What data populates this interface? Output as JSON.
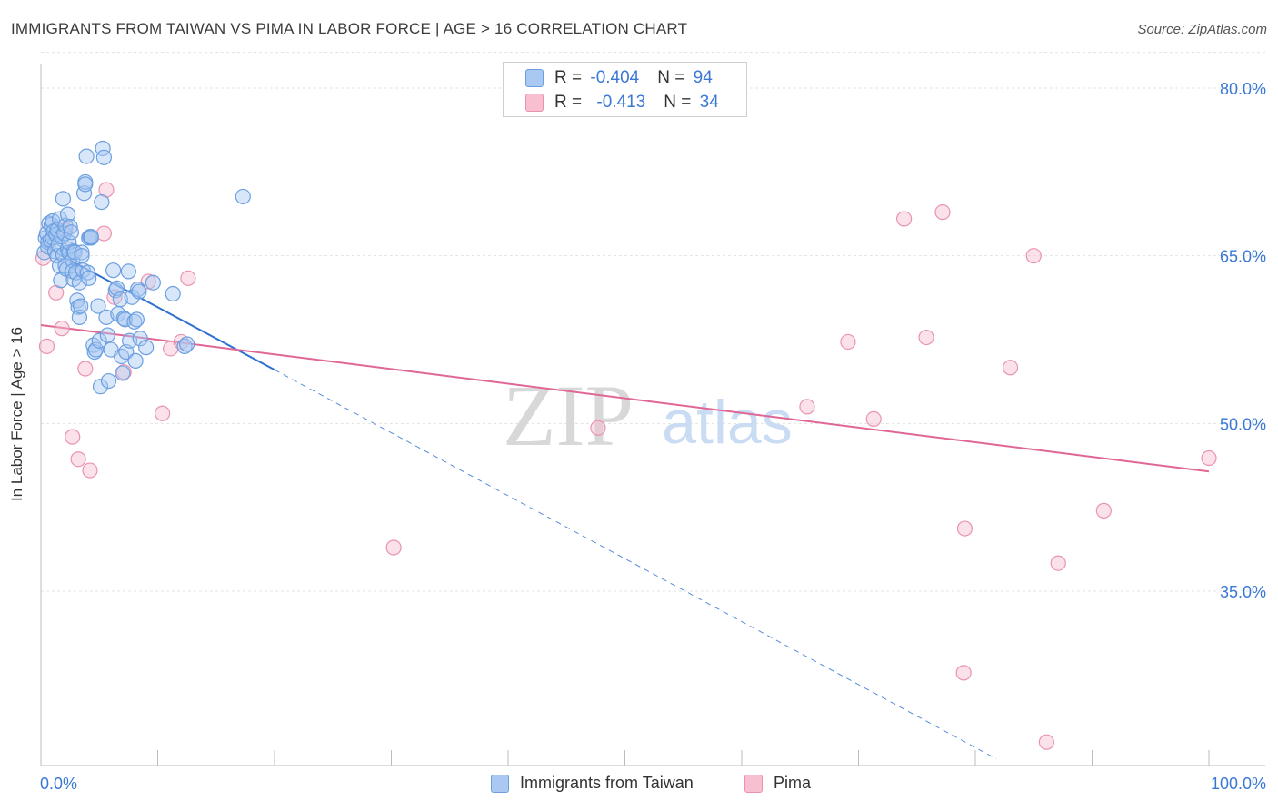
{
  "title": "IMMIGRANTS FROM TAIWAN VS PIMA IN LABOR FORCE | AGE > 16 CORRELATION CHART",
  "source": "Source: ZipAtlas.com",
  "watermark": {
    "zip": "ZIP",
    "atlas": "atlas"
  },
  "colors": {
    "blue_fill": "#a9c8f2",
    "blue_stroke": "#6b9fe0",
    "blue_line": "#2f6fd0",
    "pink_fill": "#f7bfd0",
    "pink_stroke": "#ea93b0",
    "pink_line": "#e06795",
    "grid": "#e3e3e3",
    "axis_label": "#3a78d4"
  },
  "legend": {
    "rows": [
      {
        "r_label": "R = ",
        "r_value": "-0.404",
        "n_label": "N = ",
        "n_value": "94"
      },
      {
        "r_label": "R = ",
        "r_value": "-0.413",
        "n_label": "N = ",
        "n_value": "34"
      }
    ]
  },
  "chart_data": {
    "type": "scatter",
    "xlabel": "",
    "ylabel": "In Labor Force | Age > 16",
    "xlim": [
      0,
      100
    ],
    "ylim": [
      20,
      83
    ],
    "x_tick_labels": [
      {
        "value": 0,
        "label": "0.0%"
      },
      {
        "value": 100,
        "label": "100.0%"
      }
    ],
    "y_tick_labels": [
      {
        "value": 35,
        "label": "35.0%"
      },
      {
        "value": 50,
        "label": "50.0%"
      },
      {
        "value": 65,
        "label": "65.0%"
      },
      {
        "value": 80,
        "label": "80.0%"
      }
    ],
    "gridlines_y": [
      35,
      50,
      65,
      80
    ],
    "legend_position": "top-center",
    "series": [
      {
        "name": "Immigrants from Taiwan",
        "color": "blue",
        "points": [
          [
            0.3,
            65.3
          ],
          [
            0.4,
            66.6
          ],
          [
            0.5,
            67.0
          ],
          [
            0.6,
            66.2
          ],
          [
            0.6,
            65.8
          ],
          [
            0.7,
            67.9
          ],
          [
            0.8,
            66.4
          ],
          [
            0.9,
            67.8
          ],
          [
            1.0,
            68.1
          ],
          [
            1.0,
            66.6
          ],
          [
            1.1,
            67.2
          ],
          [
            1.2,
            65.4
          ],
          [
            1.3,
            66.9
          ],
          [
            1.4,
            67.3
          ],
          [
            1.4,
            65.0
          ],
          [
            1.5,
            66.0
          ],
          [
            1.6,
            68.3
          ],
          [
            1.6,
            64.1
          ],
          [
            1.7,
            62.8
          ],
          [
            1.8,
            66.7
          ],
          [
            1.9,
            65.1
          ],
          [
            1.9,
            70.1
          ],
          [
            2.0,
            67.0
          ],
          [
            2.1,
            67.7
          ],
          [
            2.1,
            64.1
          ],
          [
            2.2,
            63.8
          ],
          [
            2.3,
            68.7
          ],
          [
            2.3,
            65.6
          ],
          [
            2.4,
            65.3
          ],
          [
            2.4,
            66.2
          ],
          [
            2.5,
            67.6
          ],
          [
            2.6,
            67.1
          ],
          [
            2.7,
            64.6
          ],
          [
            2.7,
            63.6
          ],
          [
            2.8,
            62.9
          ],
          [
            2.8,
            65.4
          ],
          [
            2.9,
            65.3
          ],
          [
            3.0,
            63.5
          ],
          [
            3.1,
            61.0
          ],
          [
            3.2,
            60.4
          ],
          [
            3.3,
            62.6
          ],
          [
            3.3,
            59.5
          ],
          [
            3.4,
            60.5
          ],
          [
            3.5,
            65.3
          ],
          [
            3.5,
            65.0
          ],
          [
            3.6,
            63.7
          ],
          [
            3.7,
            70.6
          ],
          [
            3.8,
            71.6
          ],
          [
            3.8,
            71.4
          ],
          [
            3.9,
            73.9
          ],
          [
            4.0,
            63.5
          ],
          [
            4.1,
            63.0
          ],
          [
            4.1,
            66.6
          ],
          [
            4.2,
            66.7
          ],
          [
            4.3,
            66.6
          ],
          [
            4.3,
            66.7
          ],
          [
            4.5,
            57.0
          ],
          [
            4.6,
            56.4
          ],
          [
            4.7,
            56.6
          ],
          [
            4.9,
            60.5
          ],
          [
            5.0,
            57.4
          ],
          [
            5.1,
            53.3
          ],
          [
            5.2,
            69.8
          ],
          [
            5.3,
            74.6
          ],
          [
            5.4,
            73.8
          ],
          [
            5.6,
            59.5
          ],
          [
            5.7,
            57.9
          ],
          [
            5.8,
            53.8
          ],
          [
            6.0,
            56.6
          ],
          [
            6.2,
            63.7
          ],
          [
            6.4,
            61.9
          ],
          [
            6.5,
            62.1
          ],
          [
            6.6,
            59.8
          ],
          [
            6.8,
            61.1
          ],
          [
            6.9,
            56.0
          ],
          [
            7.0,
            54.5
          ],
          [
            7.1,
            59.4
          ],
          [
            7.2,
            59.3
          ],
          [
            7.3,
            56.4
          ],
          [
            7.5,
            63.6
          ],
          [
            7.6,
            57.4
          ],
          [
            7.8,
            61.3
          ],
          [
            8.0,
            59.1
          ],
          [
            8.1,
            55.6
          ],
          [
            8.2,
            59.3
          ],
          [
            8.3,
            62.0
          ],
          [
            8.4,
            61.8
          ],
          [
            8.5,
            57.6
          ],
          [
            9.0,
            56.8
          ],
          [
            9.6,
            62.6
          ],
          [
            11.3,
            61.6
          ],
          [
            12.3,
            56.9
          ],
          [
            12.5,
            57.1
          ],
          [
            17.3,
            70.3
          ]
        ],
        "trend": {
          "x": [
            0,
            20
          ],
          "y": [
            66.0,
            54.8
          ]
        },
        "trend_extension": {
          "x": [
            20,
            81.8
          ],
          "y": [
            54.8,
            20
          ]
        }
      },
      {
        "name": "Pima",
        "color": "pink",
        "points": [
          [
            0.2,
            64.8
          ],
          [
            0.5,
            56.9
          ],
          [
            1.3,
            61.7
          ],
          [
            1.8,
            58.5
          ],
          [
            2.1,
            67.3
          ],
          [
            2.7,
            48.8
          ],
          [
            3.2,
            46.8
          ],
          [
            3.8,
            54.9
          ],
          [
            4.2,
            45.8
          ],
          [
            5.4,
            67.0
          ],
          [
            5.6,
            70.9
          ],
          [
            6.3,
            61.3
          ],
          [
            7.1,
            54.6
          ],
          [
            9.2,
            62.7
          ],
          [
            10.4,
            50.9
          ],
          [
            11.1,
            56.7
          ],
          [
            12.0,
            57.3
          ],
          [
            12.6,
            63.0
          ],
          [
            30.2,
            38.9
          ],
          [
            47.7,
            49.6
          ],
          [
            65.6,
            51.5
          ],
          [
            69.1,
            57.3
          ],
          [
            71.3,
            50.4
          ],
          [
            73.9,
            68.3
          ],
          [
            75.8,
            57.7
          ],
          [
            77.2,
            68.9
          ],
          [
            79.0,
            27.7
          ],
          [
            79.1,
            40.6
          ],
          [
            83.0,
            55.0
          ],
          [
            85.0,
            65.0
          ],
          [
            86.1,
            21.5
          ],
          [
            87.1,
            37.5
          ],
          [
            91.0,
            42.2
          ],
          [
            100.0,
            46.9
          ]
        ],
        "trend": {
          "x": [
            0,
            100
          ],
          "y": [
            58.8,
            45.7
          ]
        }
      }
    ]
  }
}
